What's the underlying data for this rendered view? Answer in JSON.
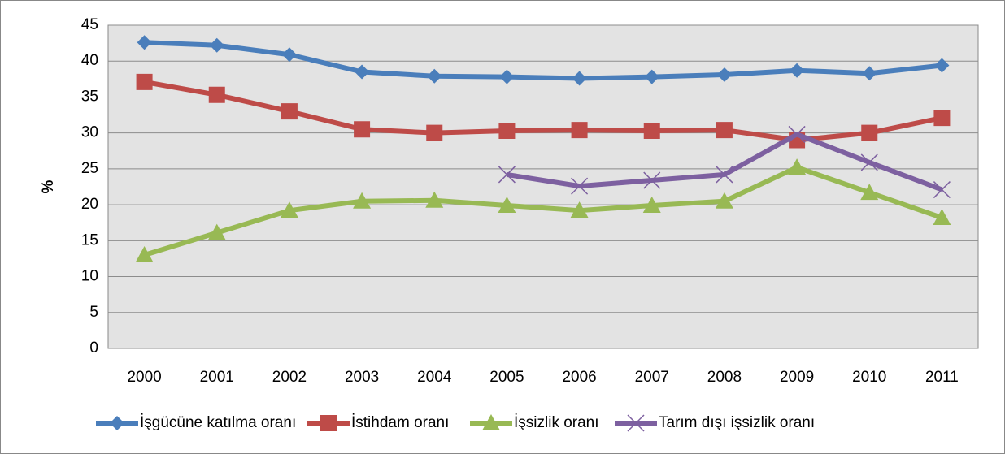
{
  "chart_data": {
    "type": "line",
    "y_label": "%",
    "categories": [
      "2000",
      "2001",
      "2002",
      "2003",
      "2004",
      "2005",
      "2006",
      "2007",
      "2008",
      "2009",
      "2010",
      "2011"
    ],
    "series": [
      {
        "name": "İşgücüne katılma oranı",
        "color": "#4a7ebb",
        "marker": "diamond",
        "values": [
          42.6,
          42.2,
          40.9,
          38.5,
          37.9,
          37.8,
          37.6,
          37.8,
          38.1,
          38.7,
          38.3,
          39.4
        ]
      },
      {
        "name": "İstihdam oranı",
        "color": "#be4b48",
        "marker": "square",
        "values": [
          37.1,
          35.3,
          33.0,
          30.5,
          30.0,
          30.3,
          30.4,
          30.3,
          30.4,
          29.0,
          30.0,
          32.1
        ]
      },
      {
        "name": "İşsizlik oranı",
        "color": "#98b954",
        "marker": "triangle",
        "values": [
          13.0,
          16.1,
          19.2,
          20.5,
          20.6,
          19.9,
          19.2,
          19.9,
          20.5,
          25.2,
          21.7,
          18.2
        ]
      },
      {
        "name": "Tarım dışı işsizlik oranı",
        "color": "#7d60a0",
        "marker": "x",
        "values": [
          null,
          null,
          null,
          null,
          null,
          24.2,
          22.6,
          23.4,
          24.2,
          29.8,
          25.9,
          22.1
        ]
      }
    ],
    "ylim": [
      0,
      45
    ],
    "yticks": [
      0,
      5,
      10,
      15,
      20,
      25,
      30,
      35,
      40,
      45
    ],
    "grid": true,
    "legend": "bottom"
  }
}
